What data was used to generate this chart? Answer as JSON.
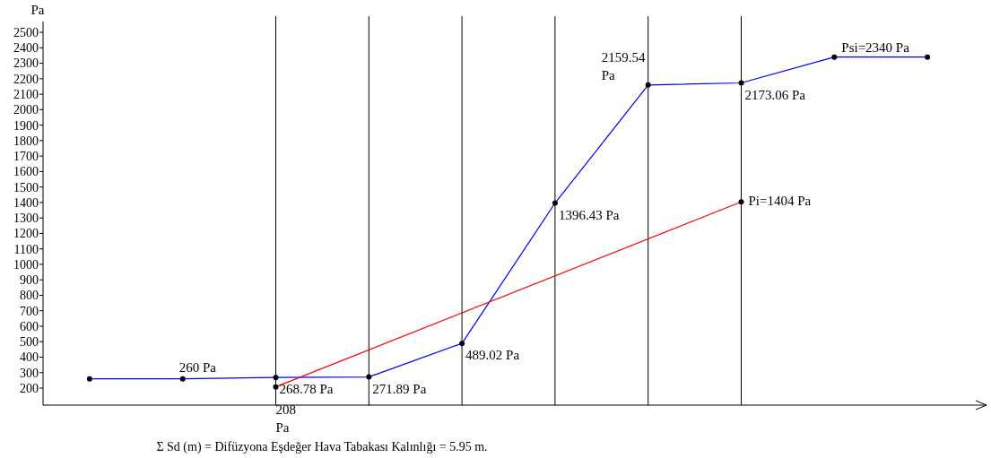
{
  "chart_data": {
    "type": "line",
    "ylabel": "Pa",
    "categories": [
      null,
      null,
      null,
      null,
      null,
      null,
      null,
      null,
      null,
      null
    ],
    "ylim": [
      90,
      2570
    ],
    "yticks": [
      200,
      300,
      400,
      500,
      600,
      700,
      800,
      900,
      1000,
      1100,
      1200,
      1300,
      1400,
      1500,
      1600,
      1700,
      1800,
      1900,
      2000,
      2100,
      2200,
      2300,
      2400,
      2500
    ],
    "tick_labels": "y",
    "grid": "x",
    "marker": "circle",
    "line_style": "solid",
    "series": [
      {
        "color": "#0000ff",
        "values": [
          260,
          260,
          268.78,
          271.89,
          489.02,
          1396.43,
          2159.54,
          2173.06,
          2340,
          2340
        ],
        "value_labels": [
          null,
          "260 Pa",
          "268.78 Pa",
          "271.89 Pa",
          "489.02 Pa",
          "1396.43 Pa",
          "2159.54 Pa",
          "2173.06 Pa",
          "Psi=2340 Pa",
          null
        ]
      },
      {
        "color": "#ff0000",
        "values": [
          null,
          null,
          208,
          null,
          null,
          null,
          null,
          1404,
          null,
          null
        ],
        "value_labels": [
          null,
          null,
          "208 Pa",
          null,
          null,
          null,
          null,
          "Pi=1404 Pa",
          null,
          null
        ]
      }
    ],
    "annotations": [
      "Σ Sd (m) = Difüzyona Eşdeğer Hava Tabakası Kalınlığı = 5.95 m."
    ]
  }
}
